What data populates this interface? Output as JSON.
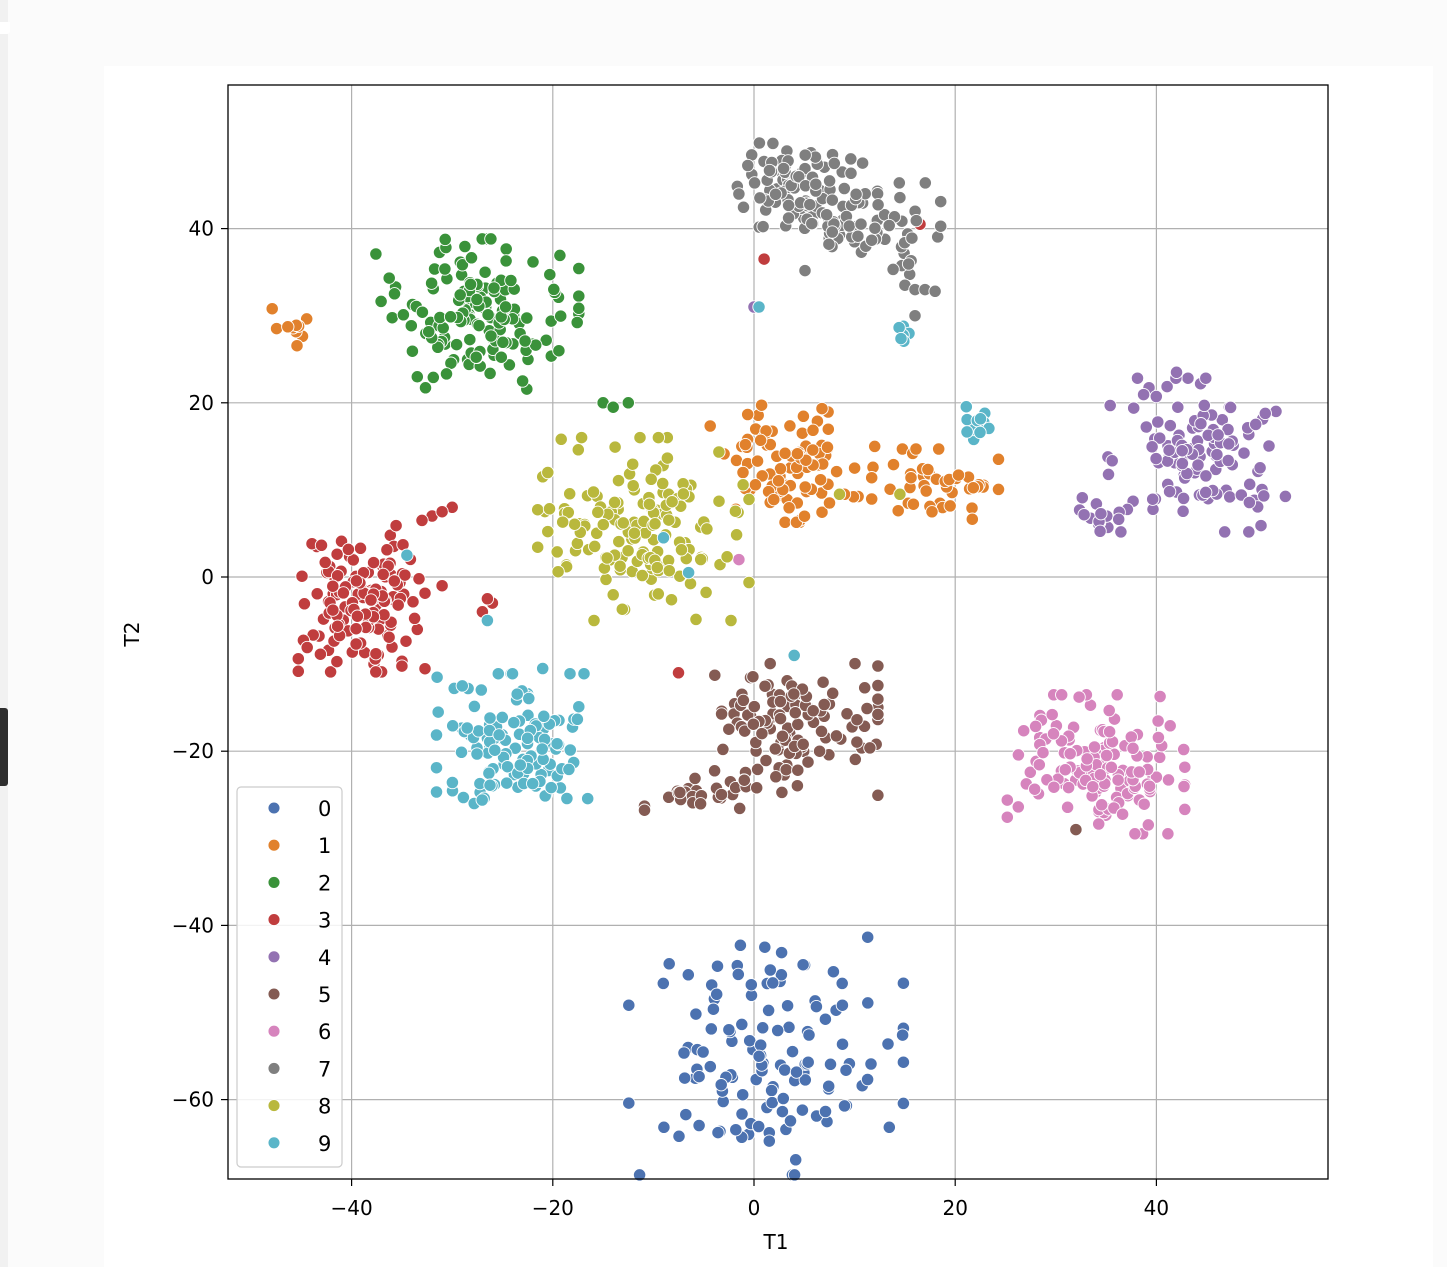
{
  "chart_data": {
    "type": "scatter",
    "title": "",
    "xlabel": "T1",
    "ylabel": "T2",
    "xlim": [
      -52,
      57
    ],
    "ylim": [
      -69,
      56.5
    ],
    "xticks": [
      -40,
      -20,
      0,
      20,
      40
    ],
    "yticks": [
      -60,
      -40,
      -20,
      0,
      20,
      40
    ],
    "xtick_labels": [
      "−40",
      "−20",
      "0",
      "20",
      "40"
    ],
    "ytick_labels": [
      "−60",
      "−40",
      "−20",
      "0",
      "20",
      "40"
    ],
    "grid": true,
    "legend_position": "lower-left",
    "legend_labels": [
      "0",
      "1",
      "2",
      "3",
      "4",
      "5",
      "6",
      "7",
      "8",
      "9"
    ],
    "colors": [
      "#4c72b0",
      "#e1812c",
      "#3a923a",
      "#c03d3e",
      "#9372b2",
      "#845b53",
      "#d684bd",
      "#7f7f7f",
      "#b9b83d",
      "#5ab5c8"
    ],
    "series": [
      {
        "name": "0",
        "clusters": [
          {
            "cx": 1.2,
            "cy": -55.0,
            "sx": 6.5,
            "sy": 6.5,
            "n": 130
          }
        ]
      },
      {
        "name": "1",
        "clusters": [
          {
            "cx": 3.0,
            "cy": 13.0,
            "sx": 3.5,
            "sy": 3.2,
            "n": 90
          },
          {
            "cx": 18.0,
            "cy": 10.5,
            "sx": 3.0,
            "sy": 2.0,
            "n": 45
          },
          {
            "cx": -46.0,
            "cy": 28.5,
            "sx": 0.9,
            "sy": 1.2,
            "n": 10
          }
        ],
        "points": [
          [
            12,
            15
          ],
          [
            10,
            12.5
          ],
          [
            9,
            9.5
          ],
          [
            7.5,
            8.5
          ]
        ]
      },
      {
        "name": "2",
        "clusters": [
          {
            "cx": -27.5,
            "cy": 30.0,
            "sx": 4.8,
            "sy": 4.2,
            "n": 150
          }
        ],
        "points": [
          [
            -15,
            20
          ],
          [
            -14,
            19.5
          ],
          [
            -12.5,
            20
          ],
          [
            -23,
            22.5
          ]
        ]
      },
      {
        "name": "3",
        "clusters": [
          {
            "cx": -39.0,
            "cy": -2.5,
            "sx": 3.0,
            "sy": 4.0,
            "n": 140
          }
        ],
        "points": [
          [
            -32,
            7
          ],
          [
            -30,
            8
          ],
          [
            -31,
            7.5
          ],
          [
            -33,
            6.5
          ],
          [
            -26,
            -3
          ],
          [
            -27,
            -4
          ],
          [
            -26.5,
            -2.5
          ],
          [
            -31,
            -1
          ],
          [
            -7.5,
            -11
          ],
          [
            1,
            36.5
          ],
          [
            16.5,
            40.5
          ]
        ]
      },
      {
        "name": "4",
        "clusters": [
          {
            "cx": 44.0,
            "cy": 14.0,
            "sx": 4.2,
            "sy": 4.2,
            "n": 120
          },
          {
            "cx": 35.0,
            "cy": 7.0,
            "sx": 1.8,
            "sy": 1.0,
            "n": 15
          }
        ],
        "points": [
          [
            0,
            31
          ],
          [
            42,
            23.5
          ]
        ]
      },
      {
        "name": "5",
        "clusters": [
          {
            "cx": 3.5,
            "cy": -17.5,
            "sx": 4.2,
            "sy": 3.6,
            "n": 120
          },
          {
            "cx": -5.0,
            "cy": -25.0,
            "sx": 2.8,
            "sy": 1.5,
            "n": 25
          }
        ],
        "points": [
          [
            32,
            -29
          ]
        ]
      },
      {
        "name": "6",
        "clusters": [
          {
            "cx": 34.0,
            "cy": -21.5,
            "sx": 4.2,
            "sy": 3.8,
            "n": 150
          }
        ],
        "points": [
          [
            -1.5,
            2
          ]
        ]
      },
      {
        "name": "7",
        "clusters": [
          {
            "cx": 4.5,
            "cy": 45.0,
            "sx": 3.0,
            "sy": 2.3,
            "n": 90
          },
          {
            "cx": 11.0,
            "cy": 40.0,
            "sx": 3.6,
            "sy": 2.5,
            "n": 75
          }
        ],
        "points": [
          [
            15,
            33.5
          ],
          [
            16,
            33
          ],
          [
            17,
            33
          ],
          [
            18,
            32.8
          ],
          [
            16,
            30
          ]
        ]
      },
      {
        "name": "8",
        "clusters": [
          {
            "cx": -11.0,
            "cy": 5.5,
            "sx": 5.0,
            "sy": 5.0,
            "n": 155
          }
        ],
        "points": [
          [
            -21,
            11.5
          ],
          [
            -20.5,
            12
          ],
          [
            8.5,
            9.5
          ],
          [
            14.5,
            9.5
          ]
        ]
      },
      {
        "name": "9",
        "clusters": [
          {
            "cx": -24.0,
            "cy": -19.5,
            "sx": 3.6,
            "sy": 4.0,
            "n": 125
          },
          {
            "cx": 22.5,
            "cy": 17.0,
            "sx": 0.9,
            "sy": 1.3,
            "n": 14
          },
          {
            "cx": 15.0,
            "cy": 28.0,
            "sx": 0.7,
            "sy": 0.8,
            "n": 7
          }
        ],
        "points": [
          [
            -34.5,
            2.5
          ],
          [
            -26.5,
            -5
          ],
          [
            -31.5,
            -11.5
          ],
          [
            -29,
            -12.5
          ],
          [
            -9,
            4.5
          ],
          [
            -6.5,
            0.5
          ],
          [
            4,
            -9
          ],
          [
            0.5,
            31
          ],
          [
            -21,
            -10.5
          ]
        ]
      }
    ]
  }
}
